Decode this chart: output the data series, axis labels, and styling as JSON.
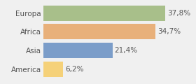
{
  "categories": [
    "America",
    "Asia",
    "Africa",
    "Europa"
  ],
  "values": [
    6.2,
    21.4,
    34.7,
    37.8
  ],
  "labels": [
    "6,2%",
    "21,4%",
    "34,7%",
    "37,8%"
  ],
  "bar_colors": [
    "#f5d179",
    "#7b9dc9",
    "#e8b07a",
    "#a8bf8a"
  ],
  "background_color": "#f0f0f0",
  "xlim": [
    0,
    46
  ],
  "bar_height": 0.82,
  "label_fontsize": 7.5,
  "category_fontsize": 7.5
}
